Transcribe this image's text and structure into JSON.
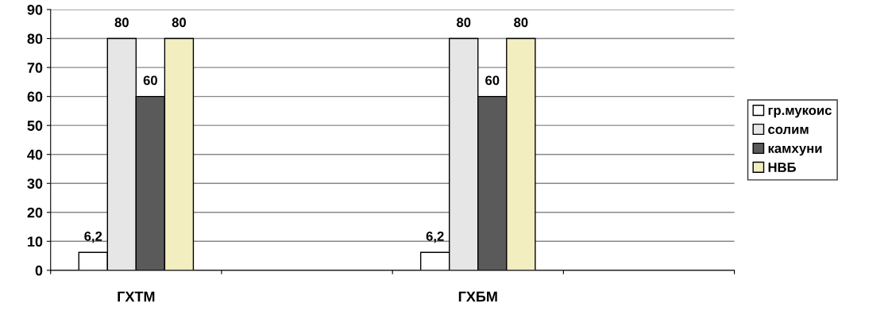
{
  "chart_data": {
    "type": "bar",
    "categories": [
      "ГХТМ",
      null,
      "ГХБМ",
      null
    ],
    "series": [
      {
        "name": "гр.мукоис",
        "color": "#ffffff",
        "values": [
          6.2,
          null,
          6.2,
          null
        ],
        "value_labels": [
          "6,2",
          null,
          "6,2",
          null
        ]
      },
      {
        "name": "солим",
        "color": "#e6e6e6",
        "values": [
          80,
          null,
          80,
          null
        ],
        "value_labels": [
          "80",
          null,
          "80",
          null
        ]
      },
      {
        "name": "камхуни",
        "color": "#5a5a5a",
        "values": [
          60,
          null,
          60,
          null
        ],
        "value_labels": [
          "60",
          null,
          "60",
          null
        ]
      },
      {
        "name": "НВБ",
        "color": "#f2eec0",
        "values": [
          80,
          null,
          80,
          null
        ],
        "value_labels": [
          "80",
          null,
          "80",
          null
        ]
      }
    ],
    "ylim": [
      0,
      90
    ],
    "yticks": [
      0,
      10,
      20,
      30,
      40,
      50,
      60,
      70,
      80,
      90
    ],
    "grid": "y",
    "legend": "right"
  }
}
